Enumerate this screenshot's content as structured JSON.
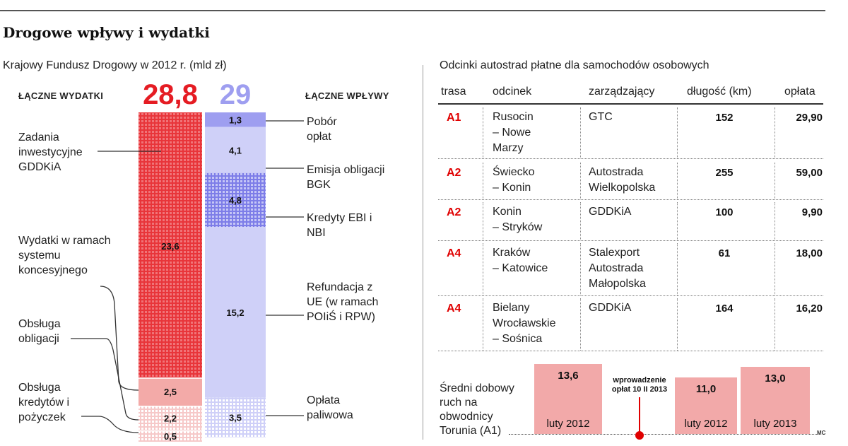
{
  "title": "Drogowe wpływy i wydatki",
  "left_subtitle": "Krajowy Fundusz Drogowy w 2012 r. (mld zł)",
  "right_subtitle": "Odcinki autostrad płatne dla samochodów osobowych",
  "credit": "MC",
  "colors": {
    "red": "#e51c23",
    "red_light": "#f3aaa8",
    "blue": "#9e9ef0",
    "blue_light": "#cfd0f8",
    "blue_mid": "#7d7de8"
  },
  "chart_data": [
    {
      "type": "bar",
      "title": "Krajowy Fundusz Drogowy w 2012 r. (mld zł)",
      "expenses": {
        "heading": "ŁĄCZNE WYDATKI",
        "total": "28,8",
        "segments": [
          {
            "label": "Zadania inwestycyjne GDDKiA",
            "value": 23.6,
            "value_label": "23,6"
          },
          {
            "label": "Obsługa obligacji",
            "value": 2.5,
            "value_label": "2,5"
          },
          {
            "label": "Obsługa kredytów i pożyczek",
            "value": 2.2,
            "value_label": "2,2"
          },
          {
            "label": "Wydatki w ramach systemu koncesyjnego",
            "value": 0.5,
            "value_label": "0,5"
          }
        ]
      },
      "income": {
        "heading": "ŁĄCZNE WPŁYWY",
        "total": "29",
        "segments": [
          {
            "label": "Pobór opłat",
            "value": 1.3,
            "value_label": "1,3"
          },
          {
            "label": "Emisja obligacji BGK",
            "value": 4.1,
            "value_label": "4,1"
          },
          {
            "label": "Kredyty EBI i NBI",
            "value": 4.8,
            "value_label": "4,8"
          },
          {
            "label": "Refundacja z UE (w ramach POIiŚ i RPW)",
            "value": 15.2,
            "value_label": "15,2"
          },
          {
            "label": "Opłata paliwowa",
            "value": 3.5,
            "value_label": "3,5"
          }
        ]
      }
    },
    {
      "type": "bar",
      "title": "Średni dobowy ruch na obwodnicy Torunia (A1)",
      "categories": [
        "luty 2012",
        "luty 2012",
        "luty 2013"
      ],
      "values": [
        13.6,
        11.0,
        13.0
      ],
      "value_labels": [
        "13,6",
        "11,0",
        "13,0"
      ],
      "annotation": "wprowadzenie opłat 10 II 2013"
    }
  ],
  "table": {
    "headers": [
      "trasa",
      "odcinek",
      "zarządzający",
      "długość (km)",
      "opłata"
    ],
    "rows": [
      {
        "route": "A1",
        "section": [
          "Rusocin",
          "– Nowe",
          "Marzy"
        ],
        "manager": [
          "GTC"
        ],
        "length": "152",
        "fee": "29,90"
      },
      {
        "route": "A2",
        "section": [
          "Świecko",
          "– Konin"
        ],
        "manager": [
          "Autostrada",
          "Wielkopolska"
        ],
        "length": "255",
        "fee": "59,00"
      },
      {
        "route": "A2",
        "section": [
          "Konin",
          "– Stryków"
        ],
        "manager": [
          "GDDKiA"
        ],
        "length": "100",
        "fee": "9,90"
      },
      {
        "route": "A4",
        "section": [
          "Kraków",
          "– Katowice"
        ],
        "manager": [
          "Stalexport",
          "Autostrada",
          "Małopolska"
        ],
        "length": "61",
        "fee": "18,00"
      },
      {
        "route": "A4",
        "section": [
          "Bielany",
          "Wrocławskie",
          "– Sośnica"
        ],
        "manager": [
          "GDDKiA"
        ],
        "length": "164",
        "fee": "16,20"
      }
    ]
  },
  "traffic_label": [
    "Średni dobowy",
    "ruch na",
    "obwodnicy",
    "Torunia (A1)"
  ]
}
